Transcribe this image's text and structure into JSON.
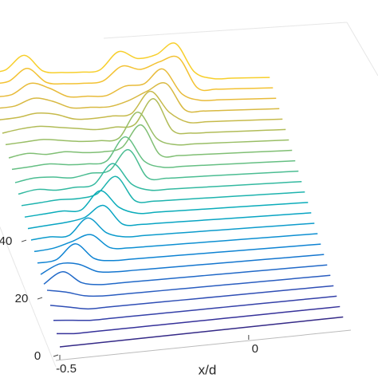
{
  "chart_data": {
    "type": "waterfall",
    "xlabel": "x/d",
    "x": [
      -0.5,
      -0.45,
      -0.4,
      -0.35,
      -0.3,
      -0.25,
      -0.2,
      -0.15,
      -0.1,
      -0.05,
      0,
      0.05,
      0.1,
      0.15,
      0.2,
      0.25
    ],
    "xlim": [
      -0.5,
      0.26
    ],
    "xticks": [
      -0.5,
      0
    ],
    "depth": [
      0,
      4,
      8,
      12,
      16,
      20,
      24,
      28,
      32,
      36,
      40,
      44,
      48,
      52,
      56,
      60,
      64,
      68,
      72,
      76,
      80,
      84,
      88,
      92
    ],
    "depthlim": [
      0,
      92
    ],
    "depthticks": [
      0,
      20,
      40
    ],
    "zlim": [
      0,
      1
    ],
    "series": [
      {
        "color": "#352a87",
        "values": [
          0,
          0,
          0,
          0,
          0,
          0,
          0,
          0,
          0,
          0,
          0,
          0,
          0,
          0,
          0,
          0
        ]
      },
      {
        "color": "#36329a",
        "values": [
          0.05,
          0,
          0,
          0,
          0,
          0,
          0,
          0,
          0,
          0,
          0,
          0,
          0,
          0,
          0,
          0
        ]
      },
      {
        "color": "#3440a8",
        "values": [
          0.1,
          0.05,
          0,
          0,
          0,
          0,
          0,
          0,
          0,
          0,
          0,
          0,
          0,
          0,
          0,
          0
        ]
      },
      {
        "color": "#2f4eb5",
        "values": [
          0.2,
          0.1,
          0,
          0,
          0,
          0,
          0,
          0,
          0,
          0,
          0,
          0,
          0,
          0,
          0,
          0
        ]
      },
      {
        "color": "#2a5dc0",
        "values": [
          0.3,
          0.2,
          0.05,
          0,
          0,
          0,
          0,
          0,
          0,
          0,
          0,
          0,
          0,
          0,
          0,
          0
        ]
      },
      {
        "color": "#2169c8",
        "values": [
          0.15,
          0.45,
          0.1,
          0,
          0,
          0,
          0,
          0,
          0,
          0,
          0,
          0,
          0,
          0,
          0,
          0
        ]
      },
      {
        "color": "#1476cf",
        "values": [
          0.1,
          0.35,
          0.3,
          0.05,
          0,
          0,
          0,
          0,
          0,
          0,
          0,
          0,
          0,
          0,
          0,
          0
        ]
      },
      {
        "color": "#0e83d3",
        "values": [
          0.1,
          0.15,
          0.55,
          0.1,
          0,
          0,
          0,
          0,
          0,
          0,
          0,
          0,
          0,
          0,
          0,
          0
        ]
      },
      {
        "color": "#0d8fd2",
        "values": [
          0.1,
          0.15,
          0.3,
          0.45,
          0.05,
          0,
          0,
          0,
          0,
          0,
          0,
          0,
          0,
          0,
          0,
          0
        ]
      },
      {
        "color": "#0c9bcc",
        "values": [
          0.1,
          0.15,
          0.15,
          0.6,
          0.15,
          0,
          0,
          0,
          0,
          0,
          0,
          0,
          0,
          0,
          0,
          0
        ]
      },
      {
        "color": "#08a4c3",
        "values": [
          0.1,
          0.15,
          0.2,
          0.3,
          0.6,
          0.05,
          0,
          0,
          0,
          0,
          0,
          0,
          0,
          0,
          0,
          0
        ]
      },
      {
        "color": "#0aacba",
        "values": [
          0.1,
          0.15,
          0.2,
          0.2,
          0.7,
          0.2,
          0,
          0,
          0,
          0,
          0,
          0,
          0,
          0,
          0,
          0
        ]
      },
      {
        "color": "#1db3ae",
        "values": [
          0.1,
          0.15,
          0.2,
          0.2,
          0.3,
          0.75,
          0.05,
          0,
          0,
          0,
          0,
          0,
          0,
          0,
          0,
          0
        ]
      },
      {
        "color": "#33b9a0",
        "values": [
          0.1,
          0.2,
          0.15,
          0.2,
          0.25,
          0.8,
          0.2,
          0,
          0,
          0,
          0,
          0,
          0,
          0,
          0,
          0
        ]
      },
      {
        "color": "#4bbd92",
        "values": [
          0.1,
          0.2,
          0.2,
          0.15,
          0.25,
          0.3,
          0.85,
          0.05,
          0,
          0,
          0,
          0,
          0,
          0,
          0,
          0
        ]
      },
      {
        "color": "#65bf83",
        "values": [
          0.15,
          0.2,
          0.25,
          0.2,
          0.2,
          0.25,
          0.9,
          0.2,
          0,
          0,
          0,
          0,
          0,
          0,
          0,
          0
        ]
      },
      {
        "color": "#80bf74",
        "values": [
          0.15,
          0.25,
          0.2,
          0.25,
          0.2,
          0.2,
          0.3,
          0.9,
          0.05,
          0,
          0,
          0,
          0,
          0,
          0,
          0
        ]
      },
      {
        "color": "#99be66",
        "values": [
          0.2,
          0.25,
          0.3,
          0.25,
          0.2,
          0.2,
          0.25,
          0.95,
          0.2,
          0,
          0,
          0,
          0,
          0,
          0,
          0
        ]
      },
      {
        "color": "#b1bc58",
        "values": [
          0.2,
          0.3,
          0.35,
          0.3,
          0.25,
          0.2,
          0.25,
          0.3,
          1,
          0.1,
          0,
          0,
          0,
          0,
          0,
          0
        ]
      },
      {
        "color": "#c6ba4b",
        "values": [
          0.25,
          0.3,
          0.4,
          0.35,
          0.2,
          0.2,
          0.25,
          0.3,
          0.9,
          0.3,
          0,
          0,
          0,
          0,
          0,
          0
        ]
      },
      {
        "color": "#d8b942",
        "values": [
          0.25,
          0.3,
          0.5,
          0.4,
          0.2,
          0.2,
          0.2,
          0.35,
          0.6,
          0.8,
          0.05,
          0,
          0,
          0,
          0,
          0
        ]
      },
      {
        "color": "#e8bb3a",
        "values": [
          0.25,
          0.3,
          0.6,
          0.45,
          0.2,
          0.2,
          0.2,
          0.45,
          0.5,
          0.9,
          0.2,
          0,
          0,
          0,
          0,
          0
        ]
      },
      {
        "color": "#f3c233",
        "values": [
          0.3,
          0.35,
          0.7,
          0.3,
          0.25,
          0.25,
          0.3,
          0.7,
          0.6,
          0.8,
          0.9,
          0.05,
          0,
          0,
          0,
          0
        ]
      },
      {
        "color": "#f7cf2c",
        "values": [
          0.3,
          0.35,
          0.75,
          0.3,
          0.25,
          0.25,
          0.3,
          0.8,
          0.6,
          0.7,
          1,
          0.2,
          0,
          0,
          0,
          0
        ]
      }
    ]
  }
}
